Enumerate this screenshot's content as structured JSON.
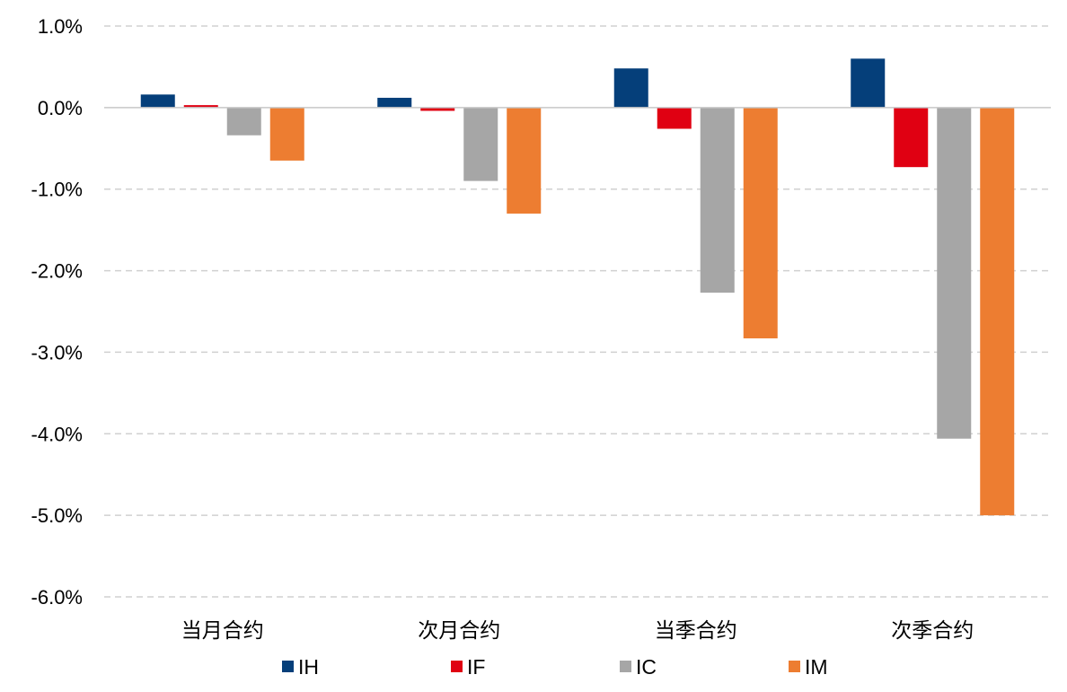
{
  "chart_data": {
    "type": "bar",
    "title": "",
    "xlabel": "",
    "ylabel": "",
    "categories": [
      "当月合约",
      "次月合约",
      "当季合约",
      "次季合约"
    ],
    "series": [
      {
        "name": "IH",
        "color": "#053F7A",
        "values": [
          0.16,
          0.12,
          0.48,
          0.6
        ]
      },
      {
        "name": "IF",
        "color": "#E00012",
        "values": [
          0.03,
          -0.04,
          -0.26,
          -0.73
        ]
      },
      {
        "name": "IC",
        "color": "#A6A6A6",
        "values": [
          -0.34,
          -0.9,
          -2.27,
          -4.06
        ]
      },
      {
        "name": "IM",
        "color": "#ED7D31",
        "values": [
          -0.65,
          -1.3,
          -2.83,
          -5.0
        ]
      }
    ],
    "ylim": [
      -6.0,
      1.0
    ],
    "yticks": [
      1.0,
      0.0,
      -1.0,
      -2.0,
      -3.0,
      -4.0,
      -5.0,
      -6.0
    ],
    "ytick_labels": [
      "1.0%",
      "0.0%",
      "-1.0%",
      "-2.0%",
      "-3.0%",
      "-4.0%",
      "-5.0%",
      "-6.0%"
    ],
    "grid": true,
    "legend_position": "bottom"
  }
}
